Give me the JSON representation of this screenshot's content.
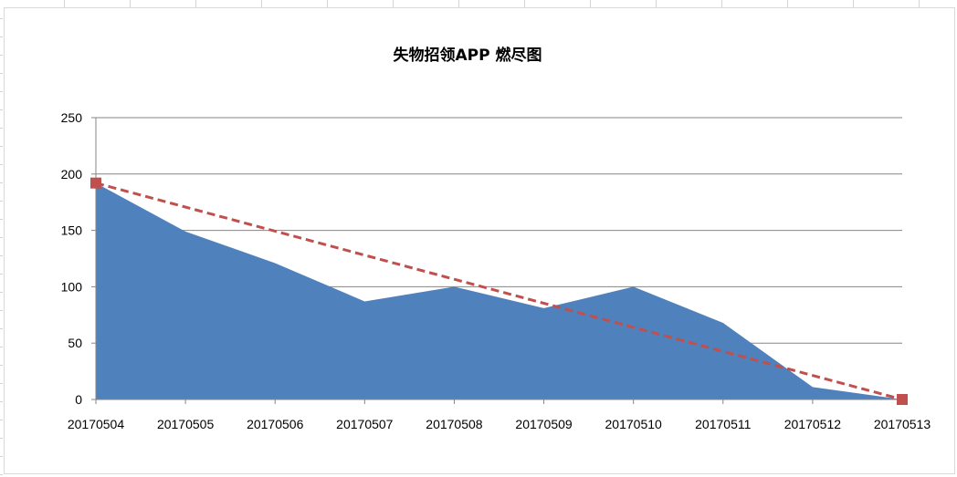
{
  "chart_data": {
    "type": "area",
    "title": "失物招领APP 燃尽图",
    "xlabel": "",
    "ylabel": "",
    "categories": [
      "20170504",
      "20170505",
      "20170506",
      "20170507",
      "20170508",
      "20170509",
      "20170510",
      "20170511",
      "20170512",
      "20170513"
    ],
    "yticks": [
      "0",
      "50",
      "100",
      "150",
      "200",
      "250"
    ],
    "ylim": [
      0,
      250
    ],
    "grid": true,
    "series": [
      {
        "type": "area",
        "values": [
          192,
          149,
          121,
          87,
          100,
          81,
          100,
          68,
          11,
          0
        ],
        "color": "#4f81bd"
      },
      {
        "type": "line",
        "style": "dashed",
        "marker": "square",
        "x": [
          "20170504",
          "20170513"
        ],
        "values": [
          192,
          0
        ],
        "color": "#c0504d"
      }
    ]
  }
}
